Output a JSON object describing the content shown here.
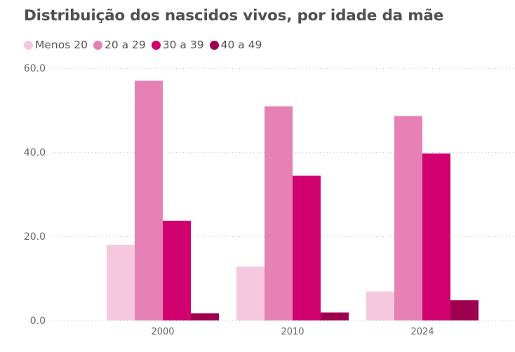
{
  "chart_data": {
    "type": "bar",
    "title": "Distribuição dos nascidos vivos, por idade da mãe",
    "xlabel": "",
    "ylabel": "",
    "categories": [
      "2000",
      "2010",
      "2024"
    ],
    "series": [
      {
        "name": "Menos 20",
        "color": "#F5C8E0",
        "values": [
          18.0,
          12.8,
          6.9
        ]
      },
      {
        "name": "20 a 29",
        "color": "#E681B5",
        "values": [
          57.0,
          50.9,
          48.6
        ]
      },
      {
        "name": "30 a 39",
        "color": "#D0006F",
        "values": [
          23.7,
          34.4,
          39.7
        ]
      },
      {
        "name": "40 a 49",
        "color": "#9E004F",
        "values": [
          1.7,
          1.9,
          4.8
        ]
      }
    ],
    "ylim": [
      0,
      60
    ],
    "yticks": [
      0,
      20,
      40,
      60
    ],
    "ytick_labels": [
      "0.0",
      "20.0",
      "40.0",
      "60.0"
    ],
    "grid": true,
    "legend_position": "top-left"
  }
}
